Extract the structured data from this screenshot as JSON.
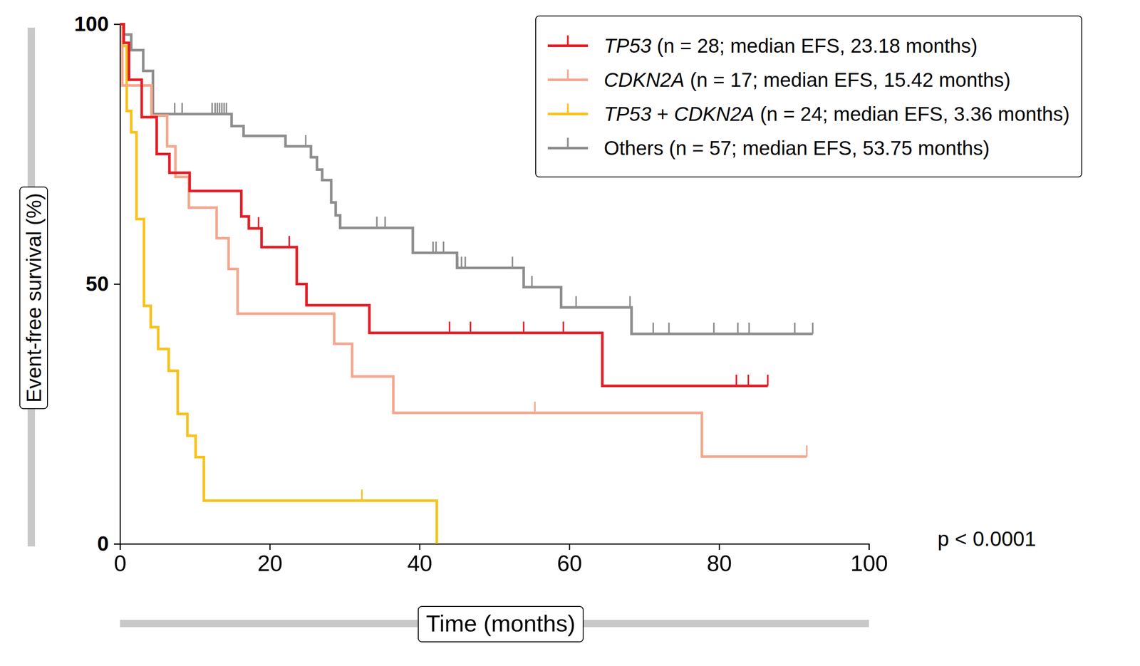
{
  "chart_data": {
    "type": "kaplan-meier",
    "x_label": "Time (months)",
    "y_label": "Event-free survival (%)",
    "annotation": "p < 0.0001",
    "xlim": [
      0,
      100
    ],
    "xticks": [
      0,
      20,
      40,
      60,
      80,
      100
    ],
    "ylim": [
      0,
      100
    ],
    "yticks": [
      0,
      50,
      100
    ],
    "grid": false,
    "legend": "top-right",
    "series": [
      {
        "name": "TP53",
        "detail": "(n = 28; median EFS, 23.18 months)",
        "color": "#e41e26",
        "x": [
          0,
          0.5,
          1.2,
          2.9,
          4.9,
          6.6,
          9.3,
          16.2,
          17.2,
          18.9,
          23.6,
          24.9,
          33.3,
          64.4,
          86.5
        ],
        "values": [
          100,
          96.4,
          89.3,
          82.1,
          75,
          71.4,
          67.9,
          63.0,
          60.7,
          57.1,
          50.0,
          45.9,
          40.6,
          30.4,
          30.4
        ],
        "censored_x": [
          18.5,
          22.6,
          44,
          46.8,
          53.9,
          59.2,
          82.3,
          83.9,
          86.5
        ],
        "censored_values": [
          60.7,
          57.1,
          40.6,
          40.6,
          40.6,
          40.6,
          30.4,
          30.4,
          30.4
        ]
      },
      {
        "name": "CDKN2A",
        "detail": "(n = 17; median EFS, 15.42 months)",
        "color": "#f4a88e",
        "x": [
          0,
          0.3,
          4.2,
          6.3,
          7.4,
          9.2,
          12.9,
          14.5,
          15.7,
          28.6,
          31,
          36.5,
          77.7,
          91.7
        ],
        "values": [
          100,
          88.2,
          82.4,
          76.5,
          70.6,
          64.7,
          58.8,
          52.9,
          44.3,
          38.5,
          32.2,
          25.2,
          16.8,
          16.8
        ],
        "censored_x": [
          55.4,
          91.7
        ],
        "censored_values": [
          25.2,
          16.8
        ]
      },
      {
        "name": "TP53 + CDKN2A",
        "detail": "(n = 24; median EFS, 3.36 months)",
        "color": "#f8c21a",
        "x": [
          0,
          0.4,
          0.9,
          1.5,
          2.2,
          3.2,
          4.1,
          5.1,
          6.5,
          7.7,
          9,
          10.1,
          11.2,
          42.3
        ],
        "values": [
          100,
          95.8,
          83.3,
          79.2,
          62.5,
          45.8,
          41.7,
          37.5,
          33.3,
          25,
          20.8,
          16.7,
          8.3,
          0
        ],
        "censored_x": [
          32.3
        ],
        "censored_values": [
          8.3
        ]
      },
      {
        "name": "Others (n = 57; median EFS, 53.75 months)",
        "color": "#8e8e8e",
        "x": [
          0,
          0.5,
          1.5,
          3.1,
          4.4,
          14.9,
          16.5,
          22.1,
          25.5,
          26.3,
          27,
          28.2,
          28.8,
          29.4,
          39.1,
          45,
          53.9,
          58.9,
          68.3,
          92.5
        ],
        "values": [
          100,
          98,
          95,
          91,
          82.7,
          80.4,
          78.5,
          76.5,
          74.4,
          72,
          70,
          65.7,
          63.2,
          60.8,
          56,
          53.1,
          49.4,
          45.5,
          40.4,
          40.4
        ],
        "censored_x": [
          7.3,
          8.3,
          12.3,
          12.7,
          13,
          13.3,
          13.6,
          13.9,
          14.2,
          24.8,
          34.3,
          35.4,
          41.8,
          42.2,
          43.2,
          45.1,
          45.6,
          46.1,
          52.4,
          55,
          60.9,
          68.1,
          71.2,
          73.3,
          79.3,
          82.5,
          84,
          90.1,
          92.5
        ],
        "censored_values": [
          82.7,
          82.7,
          82.7,
          82.7,
          82.7,
          82.7,
          82.7,
          82.7,
          82.7,
          76.5,
          60.8,
          60.8,
          56,
          56,
          56,
          53.1,
          53.1,
          53.1,
          53.1,
          49.4,
          45.5,
          45.5,
          40.4,
          40.4,
          40.4,
          40.4,
          40.4,
          40.4,
          40.4
        ]
      }
    ]
  }
}
